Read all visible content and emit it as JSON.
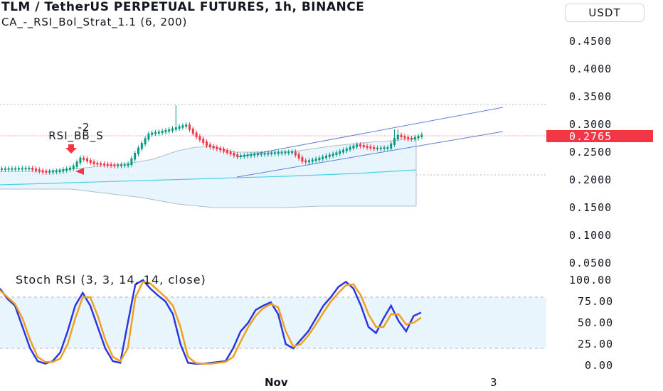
{
  "header": {
    "title": "TLM / TetherUS PERPETUAL FUTURES, 1h, BINANCE",
    "indicator": "CA_-_RSI_Bol_Strat_1.1 (6, 200)",
    "currency": "USDT"
  },
  "price_axis": {
    "labels": [
      "0.4500",
      "0.4000",
      "0.3500",
      "0.3000",
      "0.2500",
      "0.2000",
      "0.1500",
      "0.1000",
      "0.0500"
    ],
    "current_price": "0.2765",
    "current_price_color": "#f23645"
  },
  "stoch_panel": {
    "label": "Stoch RSI (3, 3, 14, 14, close)",
    "axis_labels": [
      "100.00",
      "75.00",
      "50.00",
      "25.00",
      "0.00"
    ]
  },
  "time_axis": {
    "labels": [
      "Nov",
      "3"
    ]
  },
  "strategy": {
    "signal_value": "-2",
    "signal_name": "RSI_BB_S"
  },
  "colors": {
    "up_candle": "#089981",
    "down_candle": "#f23645",
    "channel_line": "#5b7fd6",
    "band_fill": "#e3f2fd",
    "basis_line": "#4dd0e1",
    "k_line": "#2a37e0",
    "d_line": "#f0a020"
  },
  "chart_data": {
    "type": "line",
    "stoch_rsi": {
      "ylim": [
        0,
        100
      ],
      "bands": [
        20,
        80
      ],
      "series": [
        {
          "values": [
            90,
            78,
            70,
            45,
            20,
            5,
            2,
            5,
            15,
            40,
            70,
            85,
            70,
            45,
            20,
            5,
            3,
            50,
            95,
            100,
            90,
            82,
            75,
            60,
            25,
            3,
            2,
            2,
            3,
            4,
            5,
            20,
            40,
            50,
            65,
            70,
            74,
            60,
            25,
            20,
            30,
            40,
            55,
            70,
            80,
            92,
            98,
            90,
            70,
            45,
            38,
            55,
            70,
            52,
            40,
            58,
            62
          ]
        },
        {
          "values": [
            88,
            80,
            72,
            55,
            30,
            10,
            4,
            4,
            8,
            25,
            55,
            80,
            80,
            58,
            30,
            10,
            5,
            20,
            80,
            98,
            96,
            88,
            80,
            70,
            45,
            10,
            3,
            2,
            2,
            3,
            4,
            10,
            28,
            45,
            58,
            67,
            72,
            68,
            40,
            22,
            25,
            35,
            48,
            62,
            75,
            85,
            94,
            95,
            82,
            60,
            45,
            45,
            60,
            60,
            48,
            50,
            56
          ]
        }
      ]
    }
  }
}
